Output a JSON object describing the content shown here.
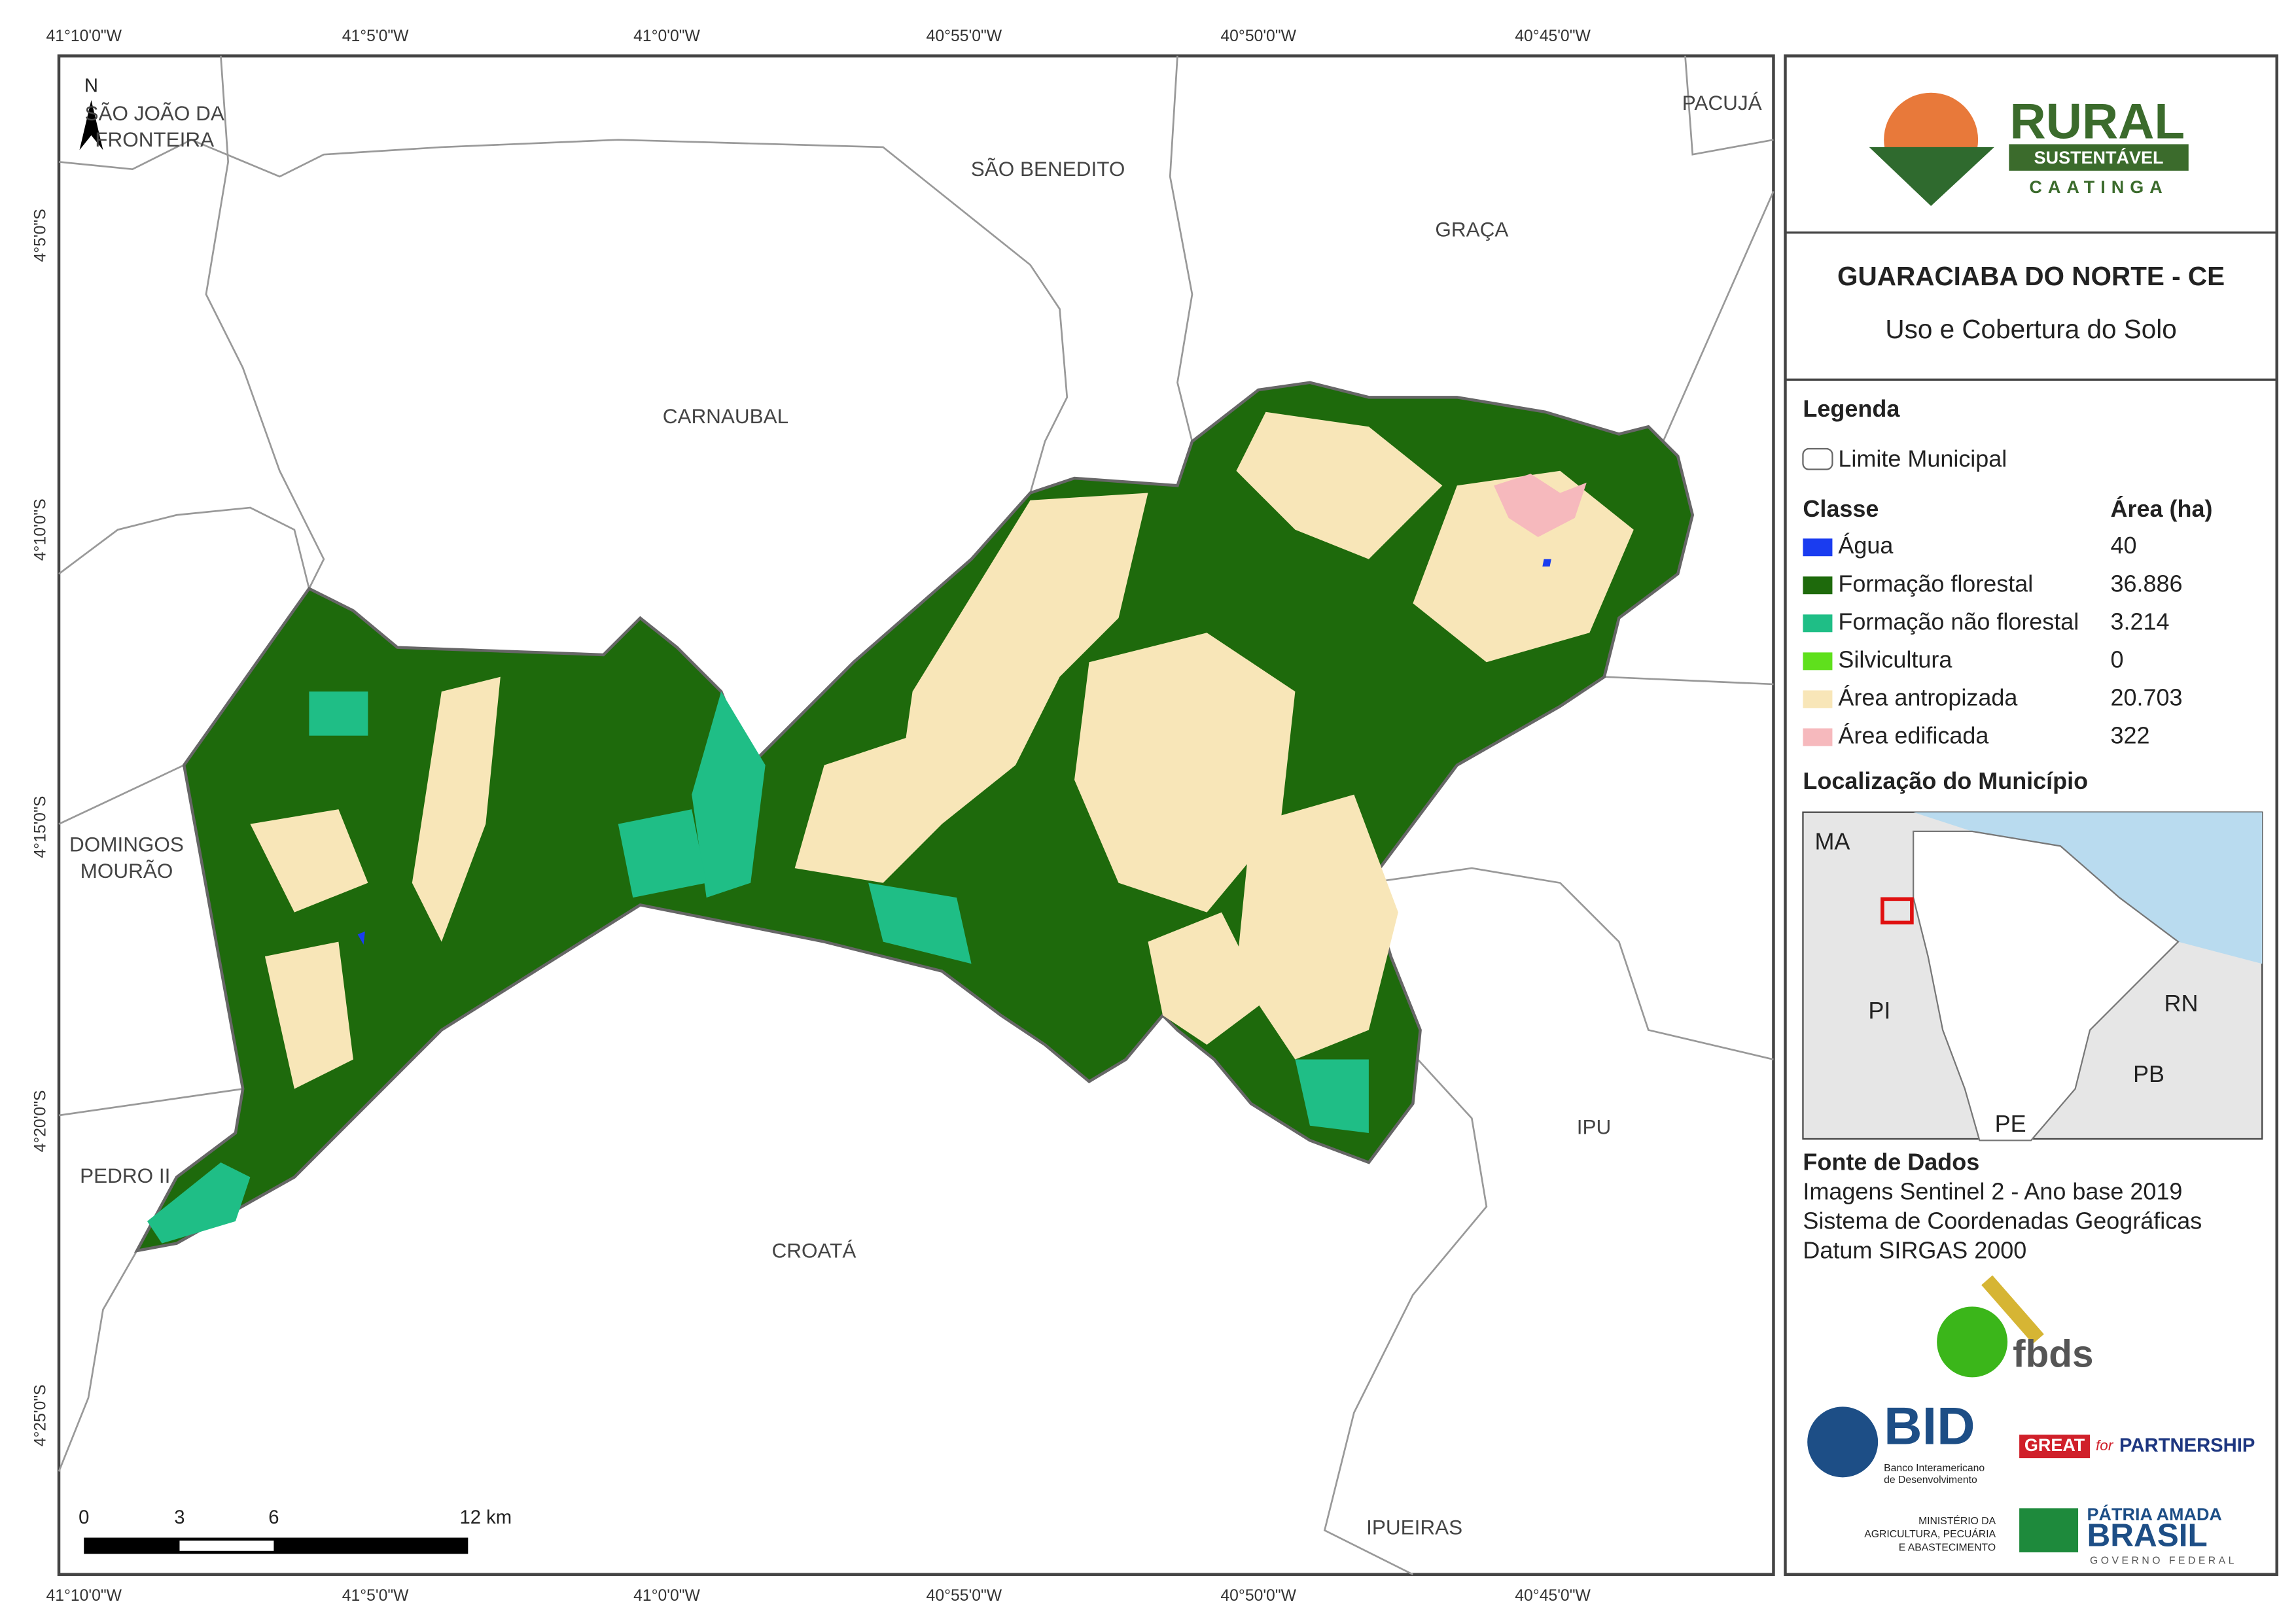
{
  "map": {
    "coords_top": [
      "41°10'0\"W",
      "41°5'0\"W",
      "41°0'0\"W",
      "40°55'0\"W",
      "40°50'0\"W",
      "40°45'0\"W"
    ],
    "coords_bottom": [
      "41°10'0\"W",
      "41°5'0\"W",
      "41°0'0\"W",
      "40°55'0\"W",
      "40°50'0\"W",
      "40°45'0\"W"
    ],
    "coords_left": [
      "4°5'0\"S",
      "4°10'0\"S",
      "4°15'0\"S",
      "4°20'0\"S",
      "4°25'0\"S"
    ],
    "north": "N",
    "places": [
      [
        "SÃO JOÃO DA",
        "FRONTEIRA"
      ],
      [
        "SÃO BENEDITO"
      ],
      [
        "PACUJÁ"
      ],
      [
        "GRAÇA"
      ],
      [
        "CARNAUBAL"
      ],
      [
        "DOMINGOS",
        "MOURÃO"
      ],
      [
        "PEDRO II"
      ],
      [
        "CROATÁ"
      ],
      [
        "IPU"
      ],
      [
        "IPUEIRAS"
      ]
    ],
    "scale": [
      "0",
      "3",
      "6",
      "12 km"
    ]
  },
  "panel": {
    "logo": {
      "main": "RURAL",
      "band": "SUSTENTÁVEL",
      "sub": "CAATINGA"
    },
    "title": "GUARACIABA DO NORTE - CE",
    "subtitle": "Uso e Cobertura do Solo",
    "legend_title": "Legenda",
    "limit": "Limite Municipal",
    "class_header": "Classe",
    "area_header": "Área (ha)",
    "classes": [
      {
        "name": "Água",
        "color": "#1a3cf0",
        "area": "40"
      },
      {
        "name": "Formação florestal",
        "color": "#1e6a0c",
        "area": "36.886"
      },
      {
        "name": "Formação não florestal",
        "color": "#1fbe86",
        "area": "3.214"
      },
      {
        "name": "Silvicultura",
        "color": "#5fe01c",
        "area": "0"
      },
      {
        "name": "Área antropizada",
        "color": "#f8e6b8",
        "area": "20.703"
      },
      {
        "name": "Área edificada",
        "color": "#f6b9bd",
        "area": "322"
      }
    ],
    "location_title": "Localização do Município",
    "location_labels": [
      "MA",
      "PI",
      "RN",
      "PB",
      "PE"
    ],
    "source_title": "Fonte de Dados",
    "source_lines": [
      "Imagens Sentinel 2 - Ano base 2019",
      "Sistema de Coordenadas Geográficas",
      "Datum SIRGAS 2000"
    ],
    "sponsors": {
      "fbds": "fbds",
      "bid": "BID",
      "bid_name": [
        "Banco Interamericano",
        "de Desenvolvimento"
      ],
      "great": "GREAT",
      "for": "for",
      "partnership": "PARTNERSHIP",
      "ministry": [
        "MINISTÉRIO DA",
        "AGRICULTURA, PECUÁRIA",
        "E ABASTECIMENTO"
      ],
      "patria": "PÁTRIA AMADA",
      "brasil": "BRASIL",
      "gov": "GOVERNO FEDERAL"
    }
  }
}
